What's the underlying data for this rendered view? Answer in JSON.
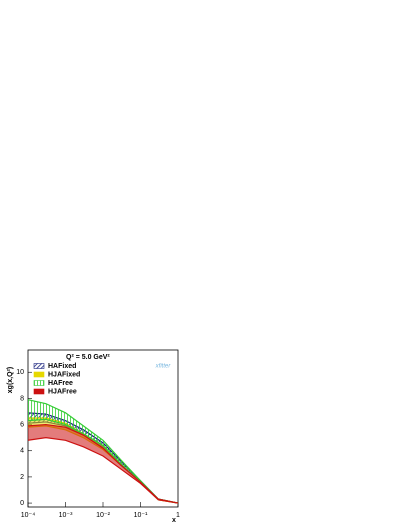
{
  "chart_data": {
    "type": "band",
    "title": "Q² = 5.0 GeV²",
    "ylabel": "xg(x,Q²)",
    "xlabel": "x",
    "logo": "xfitter",
    "log_x": true,
    "x": [
      0.0001,
      0.0003,
      0.001,
      0.003,
      0.01,
      0.03,
      0.1,
      0.3,
      1
    ],
    "xlim": [
      0.0001,
      1
    ],
    "xticks": [
      {
        "value": 0.0001,
        "label": "10⁻⁴"
      },
      {
        "value": 0.001,
        "label": "10⁻³"
      },
      {
        "value": 0.01,
        "label": "10⁻²"
      },
      {
        "value": 0.1,
        "label": "10⁻¹"
      },
      1
    ],
    "ylim": [
      -0.3,
      11.7
    ],
    "yticks": [
      0,
      2,
      4,
      6,
      8,
      10
    ],
    "legend": "top-left",
    "series": [
      {
        "name": "HAFixed",
        "color": "#1a237e",
        "hatch": true,
        "upper": [
          6.9,
          6.8,
          6.3,
          5.6,
          4.6,
          3.2,
          1.7,
          0.3,
          0
        ],
        "lower": [
          6.1,
          6.2,
          5.9,
          5.2,
          4.3,
          3.0,
          1.6,
          0.25,
          0
        ]
      },
      {
        "name": "HJAFixed",
        "color": "#e6d800",
        "hatch": false,
        "upper": [
          6.5,
          6.5,
          6.1,
          5.3,
          4.4,
          3.0,
          1.6,
          0.25,
          0
        ],
        "lower": [
          5.8,
          5.9,
          5.6,
          5.0,
          4.1,
          2.9,
          1.6,
          0.25,
          0
        ]
      },
      {
        "name": "HAFree",
        "color": "#33cc33",
        "hatch": true,
        "upper": [
          7.9,
          7.6,
          6.9,
          5.9,
          4.8,
          3.3,
          1.7,
          0.3,
          0
        ],
        "lower": [
          6.3,
          6.4,
          6.0,
          5.3,
          4.4,
          3.0,
          1.6,
          0.3,
          0
        ]
      },
      {
        "name": "HJAFree",
        "color": "#cc1111",
        "hatch": false,
        "upper": [
          5.9,
          6.0,
          5.8,
          5.2,
          4.2,
          2.9,
          1.6,
          0.3,
          0
        ],
        "lower": [
          4.8,
          5.0,
          4.8,
          4.3,
          3.6,
          2.6,
          1.5,
          0.25,
          0
        ]
      }
    ]
  }
}
